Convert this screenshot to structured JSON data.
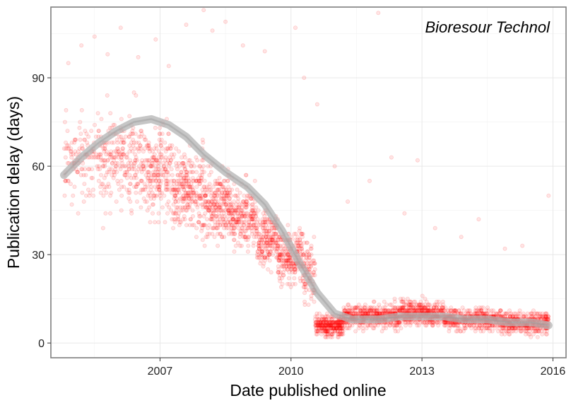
{
  "chart_data": {
    "type": "scatter",
    "title": "",
    "annotation": "Bioresour Technol",
    "xlabel": "Date published online",
    "ylabel": "Publication delay (days)",
    "xlim": [
      2004.5,
      2016.3
    ],
    "ylim": [
      -5,
      114
    ],
    "x_ticks": [
      2007,
      2010,
      2013,
      2016
    ],
    "x_tick_labels": [
      "2007",
      "2010",
      "2013",
      "2016"
    ],
    "y_ticks": [
      0,
      30,
      60,
      90
    ],
    "y_tick_labels": [
      "0",
      "30",
      "60",
      "90"
    ],
    "grid": true,
    "point_color": "#ff0000",
    "point_alpha": 0.1,
    "smooth_color": "#b3b3b3",
    "legend": "none",
    "smooth_trend": {
      "x": [
        2004.8,
        2005.2,
        2005.6,
        2006.0,
        2006.4,
        2006.8,
        2007.2,
        2007.6,
        2008.0,
        2008.5,
        2009.0,
        2009.4,
        2009.8,
        2010.2,
        2010.6,
        2011.0,
        2011.4,
        2012.0,
        2012.5,
        2013.0,
        2013.5,
        2014.0,
        2014.5,
        2015.0,
        2015.5,
        2015.9
      ],
      "y": [
        57,
        63,
        68,
        72,
        75,
        76,
        74,
        70,
        64,
        58,
        53,
        47,
        38,
        27,
        17,
        10,
        8,
        8,
        9,
        9,
        9,
        8,
        8,
        7,
        7,
        6
      ]
    },
    "point_clusters": [
      {
        "x_start": 2004.8,
        "x_end": 2005.6,
        "center": 62,
        "spread": 12,
        "count": 130
      },
      {
        "x_start": 2005.6,
        "x_end": 2006.6,
        "center": 62,
        "spread": 14,
        "count": 240
      },
      {
        "x_start": 2006.6,
        "x_end": 2007.3,
        "center": 58,
        "spread": 13,
        "count": 220
      },
      {
        "x_start": 2007.3,
        "x_end": 2008.0,
        "center": 52,
        "spread": 11,
        "count": 260
      },
      {
        "x_start": 2008.0,
        "x_end": 2008.6,
        "center": 47,
        "spread": 10,
        "count": 240
      },
      {
        "x_start": 2008.6,
        "x_end": 2009.2,
        "center": 43,
        "spread": 9,
        "count": 220
      },
      {
        "x_start": 2009.2,
        "x_end": 2009.7,
        "center": 35,
        "spread": 8,
        "count": 200
      },
      {
        "x_start": 2009.7,
        "x_end": 2010.3,
        "center": 29,
        "spread": 8,
        "count": 240
      },
      {
        "x_start": 2010.3,
        "x_end": 2010.55,
        "center": 24,
        "spread": 9,
        "count": 90
      },
      {
        "x_start": 2010.55,
        "x_end": 2011.2,
        "center": 6,
        "spread": 3,
        "count": 320
      },
      {
        "x_start": 2011.2,
        "x_end": 2012.5,
        "center": 9,
        "spread": 3.5,
        "count": 520
      },
      {
        "x_start": 2012.5,
        "x_end": 2013.5,
        "center": 10,
        "spread": 3.5,
        "count": 420
      },
      {
        "x_start": 2013.5,
        "x_end": 2014.8,
        "center": 8,
        "spread": 3,
        "count": 480
      },
      {
        "x_start": 2014.8,
        "x_end": 2015.9,
        "center": 7,
        "spread": 3,
        "count": 420
      }
    ],
    "outliers": [
      {
        "x": 2004.9,
        "y": 95
      },
      {
        "x": 2005.2,
        "y": 101
      },
      {
        "x": 2005.5,
        "y": 104
      },
      {
        "x": 2005.8,
        "y": 98
      },
      {
        "x": 2006.1,
        "y": 107
      },
      {
        "x": 2006.5,
        "y": 97
      },
      {
        "x": 2006.9,
        "y": 103
      },
      {
        "x": 2007.2,
        "y": 94
      },
      {
        "x": 2007.6,
        "y": 108
      },
      {
        "x": 2008.0,
        "y": 113
      },
      {
        "x": 2008.2,
        "y": 106
      },
      {
        "x": 2008.5,
        "y": 109
      },
      {
        "x": 2008.9,
        "y": 101
      },
      {
        "x": 2009.4,
        "y": 99
      },
      {
        "x": 2010.1,
        "y": 107
      },
      {
        "x": 2010.3,
        "y": 90
      },
      {
        "x": 2010.6,
        "y": 81
      },
      {
        "x": 2011.0,
        "y": 60
      },
      {
        "x": 2011.3,
        "y": 48
      },
      {
        "x": 2011.8,
        "y": 55
      },
      {
        "x": 2012.0,
        "y": 112
      },
      {
        "x": 2012.3,
        "y": 63
      },
      {
        "x": 2012.6,
        "y": 44
      },
      {
        "x": 2012.9,
        "y": 62
      },
      {
        "x": 2013.3,
        "y": 39
      },
      {
        "x": 2013.9,
        "y": 36
      },
      {
        "x": 2014.3,
        "y": 42
      },
      {
        "x": 2014.9,
        "y": 32
      },
      {
        "x": 2015.3,
        "y": 33
      },
      {
        "x": 2015.9,
        "y": 50
      }
    ]
  }
}
